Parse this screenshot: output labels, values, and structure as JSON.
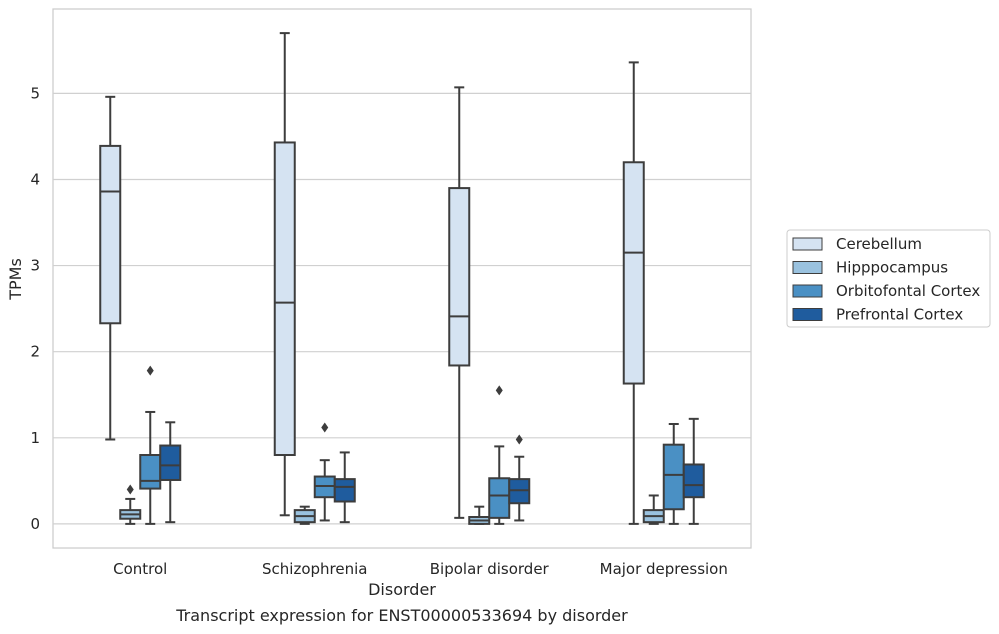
{
  "chart_data": {
    "type": "box",
    "caption": "Transcript expression for ENST00000533694 by disorder",
    "xlabel": "Disorder",
    "ylabel": "TPMs",
    "ylim": [
      -0.28,
      5.98
    ],
    "yticks": [
      0,
      1,
      2,
      3,
      4,
      5
    ],
    "grid": "horizontal",
    "legend_placement": "right",
    "categories": [
      "Control",
      "Schizophrenia",
      "Bipolar disorder",
      "Major depression"
    ],
    "series": [
      {
        "name": "Cerebellum",
        "color": "#d5e3f2",
        "boxes": [
          {
            "whisker_low": 0.98,
            "q1": 2.33,
            "median": 3.86,
            "q3": 4.39,
            "whisker_high": 4.96,
            "outliers": []
          },
          {
            "whisker_low": 0.1,
            "q1": 0.8,
            "median": 2.57,
            "q3": 4.43,
            "whisker_high": 5.7,
            "outliers": []
          },
          {
            "whisker_low": 0.07,
            "q1": 1.84,
            "median": 2.41,
            "q3": 3.9,
            "whisker_high": 5.07,
            "outliers": []
          },
          {
            "whisker_low": 0.0,
            "q1": 1.63,
            "median": 3.15,
            "q3": 4.2,
            "whisker_high": 5.36,
            "outliers": []
          }
        ]
      },
      {
        "name": "Hipppocampus",
        "color": "#9ac2df",
        "boxes": [
          {
            "whisker_low": 0.0,
            "q1": 0.06,
            "median": 0.11,
            "q3": 0.16,
            "whisker_high": 0.29,
            "outliers": [
              0.4
            ]
          },
          {
            "whisker_low": 0.0,
            "q1": 0.02,
            "median": 0.09,
            "q3": 0.16,
            "whisker_high": 0.2,
            "outliers": []
          },
          {
            "whisker_low": 0.0,
            "q1": 0.0,
            "median": 0.04,
            "q3": 0.08,
            "whisker_high": 0.2,
            "outliers": []
          },
          {
            "whisker_low": 0.0,
            "q1": 0.02,
            "median": 0.09,
            "q3": 0.16,
            "whisker_high": 0.33,
            "outliers": []
          }
        ]
      },
      {
        "name": "Orbitofontal Cortex",
        "color": "#4a90c4",
        "boxes": [
          {
            "whisker_low": 0.0,
            "q1": 0.41,
            "median": 0.5,
            "q3": 0.8,
            "whisker_high": 1.3,
            "outliers": [
              1.78
            ]
          },
          {
            "whisker_low": 0.04,
            "q1": 0.31,
            "median": 0.44,
            "q3": 0.55,
            "whisker_high": 0.74,
            "outliers": [
              1.12
            ]
          },
          {
            "whisker_low": 0.0,
            "q1": 0.07,
            "median": 0.33,
            "q3": 0.53,
            "whisker_high": 0.9,
            "outliers": [
              1.55
            ]
          },
          {
            "whisker_low": 0.0,
            "q1": 0.17,
            "median": 0.57,
            "q3": 0.92,
            "whisker_high": 1.16,
            "outliers": []
          }
        ]
      },
      {
        "name": "Prefrontal Cortex",
        "color": "#1f5c9e",
        "boxes": [
          {
            "whisker_low": 0.02,
            "q1": 0.51,
            "median": 0.68,
            "q3": 0.91,
            "whisker_high": 1.18,
            "outliers": []
          },
          {
            "whisker_low": 0.02,
            "q1": 0.26,
            "median": 0.43,
            "q3": 0.52,
            "whisker_high": 0.83,
            "outliers": []
          },
          {
            "whisker_low": 0.04,
            "q1": 0.24,
            "median": 0.39,
            "q3": 0.52,
            "whisker_high": 0.78,
            "outliers": [
              0.98
            ]
          },
          {
            "whisker_low": 0.0,
            "q1": 0.31,
            "median": 0.45,
            "q3": 0.69,
            "whisker_high": 1.22,
            "outliers": []
          }
        ]
      }
    ]
  }
}
